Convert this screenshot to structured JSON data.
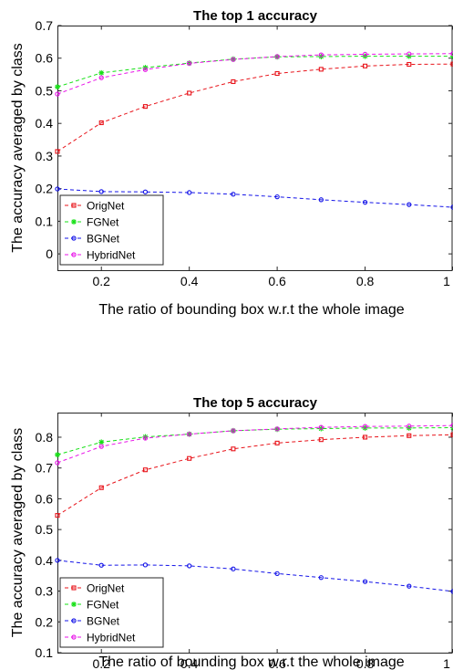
{
  "chart_data": [
    {
      "type": "line",
      "title": "The top 1 accuracy",
      "xlabel": "The ratio of bounding box w.r.t the whole image",
      "ylabel": "The accuracy averaged by class",
      "xlim": [
        0.1,
        1
      ],
      "ylim": [
        -0.05,
        0.7
      ],
      "xticks": [
        0.2,
        0.4,
        0.6,
        0.8,
        1
      ],
      "xtick_labels": [
        "0.2",
        "0.4",
        "0.6",
        "0.8",
        "1"
      ],
      "yticks": [
        0,
        0.1,
        0.2,
        0.3,
        0.4,
        0.5,
        0.6,
        0.7
      ],
      "ytick_labels": [
        "0",
        "0.1",
        "0.2",
        "0.3",
        "0.4",
        "0.5",
        "0.6",
        "0.7"
      ],
      "grid": false,
      "legend_position": "bottom-left",
      "x": [
        0.1,
        0.2,
        0.3,
        0.4,
        0.5,
        0.6,
        0.7,
        0.8,
        0.9,
        1.0
      ],
      "series": [
        {
          "name": "OrigNet",
          "color": "#e8141b",
          "marker": "square",
          "values": [
            0.314,
            0.402,
            0.452,
            0.493,
            0.528,
            0.553,
            0.566,
            0.576,
            0.581,
            0.582
          ]
        },
        {
          "name": "FGNet",
          "color": "#14e014",
          "marker": "star",
          "values": [
            0.512,
            0.555,
            0.571,
            0.585,
            0.597,
            0.604,
            0.605,
            0.606,
            0.606,
            0.606
          ]
        },
        {
          "name": "BGNet",
          "color": "#1414e8",
          "marker": "circle",
          "values": [
            0.199,
            0.191,
            0.19,
            0.188,
            0.183,
            0.175,
            0.166,
            0.158,
            0.151,
            0.143
          ]
        },
        {
          "name": "HybridNet",
          "color": "#e814e8",
          "marker": "circle",
          "values": [
            0.49,
            0.54,
            0.565,
            0.584,
            0.596,
            0.605,
            0.61,
            0.612,
            0.613,
            0.614
          ]
        }
      ]
    },
    {
      "type": "line",
      "title": "The top 5 accuracy",
      "xlabel": "The ratio of bounding box w.r.t the whole image",
      "ylabel": "The accuracy averaged by class",
      "xlim": [
        0.1,
        1
      ],
      "ylim": [
        0.1,
        0.88
      ],
      "xticks": [
        0.2,
        0.4,
        0.6,
        0.8,
        1
      ],
      "xtick_labels": [
        "0.2",
        "0.4",
        "0.6",
        "0.8",
        "1"
      ],
      "yticks": [
        0.1,
        0.2,
        0.3,
        0.4,
        0.5,
        0.6,
        0.7,
        0.8
      ],
      "ytick_labels": [
        "0.1",
        "0.2",
        "0.3",
        "0.4",
        "0.5",
        "0.6",
        "0.7",
        "0.8"
      ],
      "grid": false,
      "legend_position": "bottom-left",
      "x": [
        0.1,
        0.2,
        0.3,
        0.4,
        0.5,
        0.6,
        0.7,
        0.8,
        0.9,
        1.0
      ],
      "series": [
        {
          "name": "OrigNet",
          "color": "#e8141b",
          "marker": "square",
          "values": [
            0.546,
            0.636,
            0.694,
            0.731,
            0.762,
            0.781,
            0.792,
            0.8,
            0.805,
            0.808
          ]
        },
        {
          "name": "FGNet",
          "color": "#14e014",
          "marker": "star",
          "values": [
            0.743,
            0.784,
            0.801,
            0.81,
            0.821,
            0.826,
            0.828,
            0.83,
            0.83,
            0.831
          ]
        },
        {
          "name": "BGNet",
          "color": "#1414e8",
          "marker": "circle",
          "values": [
            0.4,
            0.384,
            0.385,
            0.382,
            0.372,
            0.357,
            0.344,
            0.331,
            0.316,
            0.299
          ]
        },
        {
          "name": "HybridNet",
          "color": "#e814e8",
          "marker": "circle",
          "values": [
            0.717,
            0.77,
            0.797,
            0.81,
            0.821,
            0.827,
            0.832,
            0.835,
            0.836,
            0.838
          ]
        }
      ]
    }
  ]
}
